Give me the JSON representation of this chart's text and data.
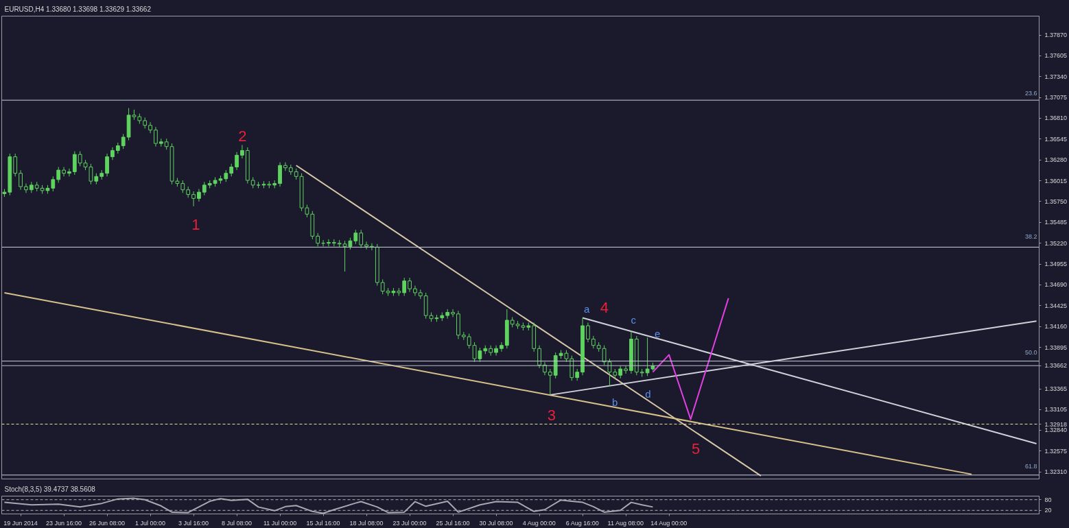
{
  "chart_data": [
    {
      "type": "candlestick",
      "title": "EURUSD,H4 1.33680 1.33698 1.33629 1.33662",
      "color": "#5fd35f",
      "categories": [
        null,
        null,
        null,
        "19 Jun 2014",
        null,
        null,
        null,
        null,
        null,
        null,
        null,
        "23 Jun 16:00",
        null,
        null,
        null,
        null,
        null,
        null,
        null,
        "26 Jun 08:00",
        null,
        null,
        null,
        null,
        null,
        null,
        null,
        "1 Jul 00:00",
        null,
        null,
        null,
        null,
        null,
        null,
        null,
        "3 Jul 16:00",
        null,
        null,
        null,
        null,
        null,
        null,
        null,
        "8 Jul 08:00",
        null,
        null,
        null,
        null,
        null,
        null,
        null,
        "11 Jul 00:00",
        null,
        null,
        null,
        null,
        null,
        null,
        null,
        "15 Jul 16:00",
        null,
        null,
        null,
        null,
        null,
        null,
        null,
        "18 Jul 08:00",
        null,
        null,
        null,
        null,
        null,
        null,
        null,
        "23 Jul 00:00",
        null,
        null,
        null,
        null,
        null,
        null,
        null,
        "25 Jul 16:00",
        null,
        null,
        null,
        null,
        null,
        null,
        null,
        "30 Jul 08:00",
        null,
        null,
        null,
        null,
        null,
        null,
        null,
        "4 Aug 00:00",
        null,
        null,
        null,
        null,
        null,
        null,
        null,
        "6 Aug 16:00",
        null,
        null,
        null,
        null,
        null,
        null,
        null,
        "11 Aug 08:00",
        null,
        null,
        null,
        null,
        null,
        null,
        null,
        "14 Aug 00:00",
        null,
        null,
        null,
        null,
        null,
        null,
        null,
        null,
        null,
        null,
        null,
        null,
        null,
        null,
        null,
        null,
        null,
        null,
        null,
        null,
        null,
        null,
        null,
        null,
        null,
        null,
        null,
        null,
        null,
        null,
        null,
        null,
        null,
        null,
        null,
        null,
        null,
        null,
        null,
        null,
        null,
        null,
        null,
        null,
        null,
        null,
        null,
        null,
        null,
        null,
        null,
        null,
        null,
        null,
        null,
        null,
        null,
        null,
        null,
        null,
        null,
        null,
        null,
        null,
        null,
        null,
        null,
        null
      ],
      "ohlc": [
        [
          1.3585,
          1.3591,
          1.3581,
          1.3587
        ],
        [
          1.3587,
          1.3636,
          1.3583,
          1.3632
        ],
        [
          1.3632,
          1.3636,
          1.3607,
          1.3611
        ],
        [
          1.3611,
          1.3615,
          1.359,
          1.3594
        ],
        [
          1.3594,
          1.3598,
          1.3586,
          1.359
        ],
        [
          1.359,
          1.36,
          1.3586,
          1.3596
        ],
        [
          1.3596,
          1.36,
          1.3588,
          1.3592
        ],
        [
          1.3592,
          1.3596,
          1.3585,
          1.3589
        ],
        [
          1.3589,
          1.3596,
          1.3585,
          1.3592
        ],
        [
          1.3592,
          1.3607,
          1.3588,
          1.3603
        ],
        [
          1.3603,
          1.3619,
          1.3599,
          1.3615
        ],
        [
          1.3615,
          1.3619,
          1.3607,
          1.3611
        ],
        [
          1.3611,
          1.3617,
          1.3607,
          1.3613
        ],
        [
          1.3613,
          1.3639,
          1.3609,
          1.3635
        ],
        [
          1.3635,
          1.3639,
          1.362,
          1.3624
        ],
        [
          1.3624,
          1.3628,
          1.3615,
          1.3619
        ],
        [
          1.3619,
          1.3623,
          1.3597,
          1.3601
        ],
        [
          1.3601,
          1.3611,
          1.3597,
          1.3607
        ],
        [
          1.3607,
          1.3615,
          1.3603,
          1.3611
        ],
        [
          1.3611,
          1.3636,
          1.3607,
          1.3632
        ],
        [
          1.3632,
          1.3644,
          1.3628,
          1.364
        ],
        [
          1.364,
          1.365,
          1.3636,
          1.3646
        ],
        [
          1.3646,
          1.3661,
          1.3642,
          1.3657
        ],
        [
          1.3657,
          1.3694,
          1.3653,
          1.3685
        ],
        [
          1.3685,
          1.3692,
          1.3679,
          1.3683
        ],
        [
          1.3683,
          1.3687,
          1.3674,
          1.3678
        ],
        [
          1.3678,
          1.3682,
          1.3668,
          1.3672
        ],
        [
          1.3672,
          1.3676,
          1.3662,
          1.3666
        ],
        [
          1.3666,
          1.367,
          1.3645,
          1.3649
        ],
        [
          1.3649,
          1.3655,
          1.3645,
          1.3651
        ],
        [
          1.3651,
          1.3655,
          1.3641,
          1.3645
        ],
        [
          1.3645,
          1.3649,
          1.3597,
          1.3601
        ],
        [
          1.3601,
          1.3605,
          1.3594,
          1.3598
        ],
        [
          1.3598,
          1.3602,
          1.3586,
          1.359
        ],
        [
          1.359,
          1.3594,
          1.358,
          1.3584
        ],
        [
          1.3584,
          1.3588,
          1.3569,
          1.3579
        ],
        [
          1.3579,
          1.3591,
          1.3575,
          1.3587
        ],
        [
          1.3587,
          1.36,
          1.3583,
          1.3596
        ],
        [
          1.3596,
          1.3602,
          1.3592,
          1.3598
        ],
        [
          1.3598,
          1.3606,
          1.3594,
          1.3602
        ],
        [
          1.3602,
          1.3608,
          1.3598,
          1.3604
        ],
        [
          1.3604,
          1.3615,
          1.36,
          1.3611
        ],
        [
          1.3611,
          1.3623,
          1.3607,
          1.3619
        ],
        [
          1.3619,
          1.3638,
          1.3615,
          1.3634
        ],
        [
          1.3634,
          1.3647,
          1.363,
          1.364
        ],
        [
          1.364,
          1.3644,
          1.3598,
          1.3602
        ],
        [
          1.3602,
          1.3606,
          1.3592,
          1.3596
        ],
        [
          1.3596,
          1.36,
          1.3592,
          1.3596
        ],
        [
          1.3596,
          1.3601,
          1.3592,
          1.3597
        ],
        [
          1.3597,
          1.3601,
          1.3592,
          1.3596
        ],
        [
          1.3596,
          1.3602,
          1.3592,
          1.3598
        ],
        [
          1.3598,
          1.3625,
          1.3594,
          1.3621
        ],
        [
          1.3621,
          1.3625,
          1.3614,
          1.3618
        ],
        [
          1.3618,
          1.3622,
          1.3609,
          1.3613
        ],
        [
          1.3613,
          1.3617,
          1.3603,
          1.3607
        ],
        [
          1.3607,
          1.3611,
          1.3563,
          1.3567
        ],
        [
          1.3567,
          1.3571,
          1.3555,
          1.3559
        ],
        [
          1.3559,
          1.3563,
          1.3527,
          1.3531
        ],
        [
          1.3531,
          1.3535,
          1.3518,
          1.3522
        ],
        [
          1.3522,
          1.3526,
          1.3518,
          1.3522
        ],
        [
          1.3522,
          1.3527,
          1.3518,
          1.3523
        ],
        [
          1.3523,
          1.3527,
          1.3518,
          1.3522
        ],
        [
          1.3522,
          1.3526,
          1.3517,
          1.3521
        ],
        [
          1.3521,
          1.3525,
          1.3486,
          1.3518
        ],
        [
          1.3518,
          1.3529,
          1.3514,
          1.3525
        ],
        [
          1.3525,
          1.3539,
          1.3521,
          1.3535
        ],
        [
          1.3535,
          1.3539,
          1.3516,
          1.352
        ],
        [
          1.352,
          1.3524,
          1.3514,
          1.3518
        ],
        [
          1.3518,
          1.3522,
          1.3513,
          1.3517
        ],
        [
          1.3517,
          1.3521,
          1.3468,
          1.3472
        ],
        [
          1.3472,
          1.3476,
          1.3457,
          1.3461
        ],
        [
          1.3461,
          1.3465,
          1.3455,
          1.3459
        ],
        [
          1.3459,
          1.3465,
          1.3455,
          1.3461
        ],
        [
          1.3461,
          1.3465,
          1.3455,
          1.3459
        ],
        [
          1.3459,
          1.3478,
          1.3455,
          1.3474
        ],
        [
          1.3474,
          1.3478,
          1.346,
          1.3464
        ],
        [
          1.3464,
          1.3468,
          1.3455,
          1.3459
        ],
        [
          1.3459,
          1.3463,
          1.3451,
          1.3455
        ],
        [
          1.3455,
          1.3459,
          1.3426,
          1.343
        ],
        [
          1.343,
          1.3434,
          1.3422,
          1.3426
        ],
        [
          1.3426,
          1.3431,
          1.3422,
          1.3427
        ],
        [
          1.3427,
          1.3434,
          1.3423,
          1.343
        ],
        [
          1.343,
          1.3438,
          1.3426,
          1.3434
        ],
        [
          1.3434,
          1.3438,
          1.3428,
          1.3432
        ],
        [
          1.3432,
          1.3436,
          1.34,
          1.3405
        ],
        [
          1.3405,
          1.3409,
          1.3399,
          1.3403
        ],
        [
          1.3403,
          1.3407,
          1.3388,
          1.3392
        ],
        [
          1.3392,
          1.3396,
          1.3371,
          1.3375
        ],
        [
          1.3375,
          1.3389,
          1.3371,
          1.3385
        ],
        [
          1.3385,
          1.3392,
          1.3381,
          1.3388
        ],
        [
          1.3388,
          1.3392,
          1.3379,
          1.3383
        ],
        [
          1.3383,
          1.3392,
          1.3379,
          1.3388
        ],
        [
          1.3388,
          1.3396,
          1.3384,
          1.3392
        ],
        [
          1.3392,
          1.3438,
          1.3388,
          1.3424
        ],
        [
          1.3424,
          1.3428,
          1.3415,
          1.3419
        ],
        [
          1.3419,
          1.3423,
          1.3413,
          1.3417
        ],
        [
          1.3417,
          1.3421,
          1.3411,
          1.3415
        ],
        [
          1.3415,
          1.3421,
          1.3411,
          1.3417
        ],
        [
          1.3417,
          1.3421,
          1.3384,
          1.3388
        ],
        [
          1.3388,
          1.3392,
          1.3363,
          1.3367
        ],
        [
          1.3367,
          1.3371,
          1.3354,
          1.3358
        ],
        [
          1.3358,
          1.3362,
          1.3329,
          1.3354
        ],
        [
          1.3354,
          1.3383,
          1.335,
          1.3379
        ],
        [
          1.3379,
          1.3386,
          1.3375,
          1.3382
        ],
        [
          1.3382,
          1.3386,
          1.3371,
          1.3375
        ],
        [
          1.3375,
          1.3379,
          1.3347,
          1.3351
        ],
        [
          1.3351,
          1.3362,
          1.3347,
          1.3358
        ],
        [
          1.3358,
          1.3427,
          1.3354,
          1.3417
        ],
        [
          1.3417,
          1.3421,
          1.3396,
          1.34
        ],
        [
          1.34,
          1.3404,
          1.3388,
          1.3392
        ],
        [
          1.3392,
          1.3396,
          1.3384,
          1.3388
        ],
        [
          1.3388,
          1.3392,
          1.3367,
          1.3371
        ],
        [
          1.3371,
          1.3375,
          1.334,
          1.3358
        ],
        [
          1.3358,
          1.3362,
          1.335,
          1.3354
        ],
        [
          1.3354,
          1.3366,
          1.335,
          1.3362
        ],
        [
          1.3362,
          1.3366,
          1.3356,
          1.336
        ],
        [
          1.336,
          1.341,
          1.3356,
          1.34
        ],
        [
          1.34,
          1.3404,
          1.3354,
          1.3358
        ],
        [
          1.3358,
          1.3362,
          1.3352,
          1.3357
        ],
        [
          1.3357,
          1.3402,
          1.3353,
          1.3362
        ],
        [
          1.3362,
          1.337,
          1.336,
          1.3366
        ],
        null,
        null,
        null,
        null,
        null,
        null,
        null,
        null,
        null,
        null,
        null,
        null,
        null,
        null,
        null,
        null,
        null,
        null,
        null,
        null,
        null,
        null,
        null,
        null,
        null,
        null,
        null,
        null,
        null,
        null,
        null,
        null,
        null,
        null,
        null,
        null,
        null,
        null,
        null,
        null,
        null,
        null,
        null,
        null,
        null,
        null,
        null,
        null,
        null,
        null,
        null,
        null,
        null,
        null,
        null,
        null,
        null,
        null,
        null,
        null,
        null,
        null,
        null,
        null,
        null,
        null,
        null,
        null,
        null,
        null,
        null
      ],
      "ylim": [
        1.3222,
        1.3811
      ],
      "tick_labels": "y",
      "grid": false,
      "yticks": [
        {
          "value": 1.3787,
          "label": "1.37870"
        },
        {
          "value": 1.37605,
          "label": "1.37605"
        },
        {
          "value": 1.3734,
          "label": "1.37340"
        },
        {
          "value": 1.37075,
          "label": "1.37075"
        },
        {
          "value": 1.3681,
          "label": "1.36810"
        },
        {
          "value": 1.36545,
          "label": "1.36545"
        },
        {
          "value": 1.3628,
          "label": "1.36280"
        },
        {
          "value": 1.36015,
          "label": "1.36015"
        },
        {
          "value": 1.3575,
          "label": "1.35750"
        },
        {
          "value": 1.35485,
          "label": "1.35485"
        },
        {
          "value": 1.3522,
          "label": "1.35220"
        },
        {
          "value": 1.34955,
          "label": "1.34955"
        },
        {
          "value": 1.3469,
          "label": "1.34690"
        },
        {
          "value": 1.34425,
          "label": "1.34425"
        },
        {
          "value": 1.3416,
          "label": "1.34160"
        },
        {
          "value": 1.33895,
          "label": "1.33895"
        },
        {
          "value": 1.33662,
          "label": "1.33662"
        },
        {
          "value": 1.33365,
          "label": "1.33365"
        },
        {
          "value": 1.33105,
          "label": "1.33105"
        },
        {
          "value": 1.32918,
          "label": "1.32918"
        },
        {
          "value": 1.3284,
          "label": "1.32840"
        },
        {
          "value": 1.32575,
          "label": "1.32575"
        },
        {
          "value": 1.3231,
          "label": "1.32310"
        }
      ],
      "ref_lines": [
        {
          "axis": "y",
          "value": 1.3704,
          "color": "#c8d0dc"
        },
        {
          "axis": "y",
          "value": 1.3517,
          "color": "#c8d0dc"
        },
        {
          "axis": "y",
          "value": 1.3372,
          "color": "#c8d0dc"
        },
        {
          "axis": "y",
          "value": 1.3227,
          "color": "#c8d0dc"
        },
        {
          "axis": "y",
          "value": 1.33662,
          "color": "#b8bcc4"
        },
        {
          "axis": "y",
          "value": 1.32918,
          "color": "#e8dca0",
          "line_style": "dashed"
        }
      ],
      "series": [
        {
          "type": "line",
          "color": "#d8c8a8",
          "values": [
            null,
            null,
            null,
            null,
            null,
            null,
            null,
            null,
            null,
            null,
            null,
            null,
            null,
            null,
            null,
            null,
            null,
            null,
            null,
            null,
            null,
            null,
            null,
            null,
            null,
            null,
            null,
            null,
            null,
            null,
            null,
            null,
            null,
            null,
            null,
            null,
            null,
            null,
            null,
            null,
            null,
            null,
            null,
            null,
            null,
            null,
            null,
            null,
            null,
            null,
            null,
            null,
            null,
            null,
            1.3621,
            null,
            null,
            null,
            null,
            null,
            null,
            null,
            null,
            null,
            null,
            null,
            null,
            null,
            null,
            null,
            null,
            null,
            null,
            null,
            null,
            null,
            null,
            null,
            null,
            null,
            null,
            null,
            null,
            null,
            null,
            null,
            null,
            null,
            null,
            null,
            null,
            null,
            null,
            null,
            null,
            null,
            null,
            null,
            null,
            null,
            null,
            null,
            null,
            null,
            null,
            null,
            null,
            null,
            null,
            null,
            null,
            null,
            null,
            null,
            null,
            null,
            null,
            null,
            null,
            null,
            null,
            null,
            null,
            null,
            null,
            null,
            null,
            null,
            null,
            null,
            null,
            null,
            null,
            null,
            null,
            null,
            null,
            null,
            null,
            null,
            1.3226,
            null,
            null,
            null,
            null,
            null,
            null,
            null,
            null,
            null,
            null,
            null,
            null,
            null,
            null,
            null,
            null,
            null,
            null,
            null,
            null,
            null,
            null,
            null,
            null,
            null,
            null,
            null,
            null,
            null,
            null,
            null,
            null,
            null,
            null,
            null,
            null,
            null,
            null,
            null,
            null,
            null,
            null,
            null,
            null,
            null,
            null,
            null,
            null,
            null,
            null,
            null
          ]
        },
        {
          "type": "line",
          "color": "#d8c08a",
          "values": [
            1.3459,
            null,
            null,
            null,
            null,
            null,
            null,
            null,
            null,
            null,
            null,
            null,
            null,
            null,
            null,
            null,
            null,
            null,
            null,
            null,
            null,
            null,
            null,
            null,
            null,
            null,
            null,
            null,
            null,
            null,
            null,
            null,
            null,
            null,
            null,
            null,
            null,
            null,
            null,
            null,
            null,
            null,
            null,
            null,
            null,
            null,
            null,
            null,
            null,
            null,
            null,
            null,
            null,
            null,
            null,
            null,
            null,
            null,
            null,
            null,
            null,
            null,
            null,
            null,
            null,
            null,
            null,
            null,
            null,
            null,
            null,
            null,
            null,
            null,
            null,
            null,
            null,
            null,
            null,
            null,
            null,
            null,
            null,
            null,
            null,
            null,
            null,
            null,
            null,
            null,
            null,
            null,
            null,
            null,
            null,
            null,
            null,
            null,
            null,
            null,
            null,
            null,
            null,
            null,
            null,
            null,
            null,
            null,
            null,
            null,
            null,
            null,
            null,
            null,
            null,
            null,
            null,
            null,
            null,
            null,
            null,
            null,
            null,
            null,
            null,
            null,
            null,
            null,
            null,
            null,
            null,
            null,
            null,
            null,
            null,
            null,
            null,
            null,
            null,
            null,
            null,
            null,
            null,
            null,
            null,
            null,
            null,
            null,
            null,
            null,
            null,
            null,
            null,
            null,
            null,
            null,
            null,
            null,
            null,
            null,
            null,
            null,
            null,
            null,
            null,
            null,
            null,
            null,
            null,
            null,
            null,
            null,
            null,
            null,
            null,
            null,
            null,
            null,
            null,
            1.3228,
            null,
            null,
            null,
            null,
            null,
            null,
            null,
            null,
            null,
            null,
            null,
            null
          ]
        },
        {
          "type": "line",
          "color": "#d0d0d8",
          "values": [
            null,
            null,
            null,
            null,
            null,
            null,
            null,
            null,
            null,
            null,
            null,
            null,
            null,
            null,
            null,
            null,
            null,
            null,
            null,
            null,
            null,
            null,
            null,
            null,
            null,
            null,
            null,
            null,
            null,
            null,
            null,
            null,
            null,
            null,
            null,
            null,
            null,
            null,
            null,
            null,
            null,
            null,
            null,
            null,
            null,
            null,
            null,
            null,
            null,
            null,
            null,
            null,
            null,
            null,
            null,
            null,
            null,
            null,
            null,
            null,
            null,
            null,
            null,
            null,
            null,
            null,
            null,
            null,
            null,
            null,
            null,
            null,
            null,
            null,
            null,
            null,
            null,
            null,
            null,
            null,
            null,
            null,
            null,
            null,
            null,
            null,
            null,
            null,
            null,
            null,
            null,
            null,
            null,
            null,
            null,
            null,
            null,
            null,
            null,
            null,
            null,
            null,
            null,
            null,
            null,
            null,
            null,
            1.3427,
            null,
            null,
            null,
            null,
            null,
            null,
            null,
            null,
            null,
            null,
            null,
            null,
            null,
            null,
            null,
            null,
            null,
            null,
            null,
            null,
            null,
            null,
            null,
            null,
            null,
            null,
            null,
            null,
            null,
            null,
            null,
            null,
            null,
            null,
            null,
            null,
            null,
            null,
            null,
            null,
            null,
            null,
            null,
            null,
            null,
            null,
            null,
            null,
            null,
            null,
            null,
            null,
            null,
            null,
            null,
            null,
            null,
            null,
            null,
            null,
            null,
            null,
            null,
            null,
            null,
            null,
            null,
            null,
            null,
            null,
            null,
            null,
            null,
            null,
            null,
            null,
            null,
            null,
            null,
            null,
            null,
            null,
            null,
            1.3267
          ]
        },
        {
          "type": "line",
          "color": "#d0d0d8",
          "values": [
            null,
            null,
            null,
            null,
            null,
            null,
            null,
            null,
            null,
            null,
            null,
            null,
            null,
            null,
            null,
            null,
            null,
            null,
            null,
            null,
            null,
            null,
            null,
            null,
            null,
            null,
            null,
            null,
            null,
            null,
            null,
            null,
            null,
            null,
            null,
            null,
            null,
            null,
            null,
            null,
            null,
            null,
            null,
            null,
            null,
            null,
            null,
            null,
            null,
            null,
            null,
            null,
            null,
            null,
            null,
            null,
            null,
            null,
            null,
            null,
            null,
            null,
            null,
            null,
            null,
            null,
            null,
            null,
            null,
            null,
            null,
            null,
            null,
            null,
            null,
            null,
            null,
            null,
            null,
            null,
            null,
            null,
            null,
            null,
            null,
            null,
            null,
            null,
            null,
            null,
            null,
            null,
            null,
            null,
            null,
            null,
            null,
            null,
            null,
            null,
            null,
            1.3329,
            null,
            null,
            null,
            null,
            null,
            null,
            null,
            null,
            null,
            null,
            null,
            null,
            null,
            null,
            null,
            null,
            null,
            null,
            null,
            null,
            null,
            null,
            null,
            null,
            null,
            null,
            null,
            null,
            null,
            null,
            null,
            null,
            null,
            null,
            null,
            null,
            null,
            null,
            null,
            null,
            null,
            null,
            null,
            null,
            null,
            null,
            null,
            null,
            null,
            null,
            null,
            null,
            null,
            null,
            null,
            null,
            null,
            null,
            null,
            null,
            null,
            null,
            null,
            null,
            null,
            null,
            null,
            null,
            null,
            null,
            null,
            null,
            null,
            null,
            null,
            null,
            null,
            null,
            null,
            null,
            null,
            null,
            null,
            null,
            null,
            null,
            null,
            null,
            null,
            1.3423
          ]
        },
        {
          "type": "line",
          "color": "#e040e0",
          "values": [
            null,
            null,
            null,
            null,
            null,
            null,
            null,
            null,
            null,
            null,
            null,
            null,
            null,
            null,
            null,
            null,
            null,
            null,
            null,
            null,
            null,
            null,
            null,
            null,
            null,
            null,
            null,
            null,
            null,
            null,
            null,
            null,
            null,
            null,
            null,
            null,
            null,
            null,
            null,
            null,
            null,
            null,
            null,
            null,
            null,
            null,
            null,
            null,
            null,
            null,
            null,
            null,
            null,
            null,
            null,
            null,
            null,
            null,
            null,
            null,
            null,
            null,
            null,
            null,
            null,
            null,
            null,
            null,
            null,
            null,
            null,
            null,
            null,
            null,
            null,
            null,
            null,
            null,
            null,
            null,
            null,
            null,
            null,
            null,
            null,
            null,
            null,
            null,
            null,
            null,
            null,
            null,
            null,
            null,
            null,
            null,
            null,
            null,
            null,
            null,
            null,
            null,
            null,
            null,
            null,
            null,
            null,
            null,
            null,
            null,
            null,
            null,
            null,
            null,
            null,
            null,
            null,
            null,
            null,
            null,
            1.3358,
            null,
            null,
            1.338,
            null,
            null,
            null,
            1.3298,
            null,
            null,
            null,
            null,
            null,
            null,
            1.3452,
            null,
            null,
            null,
            null,
            null,
            null,
            null,
            null,
            null,
            null,
            null,
            null,
            null,
            null,
            null,
            null,
            null,
            null,
            null,
            null,
            null,
            null,
            null,
            null,
            null,
            null,
            null,
            null,
            null,
            null,
            null,
            null,
            null,
            null,
            null,
            null,
            null,
            null,
            null,
            null,
            null,
            null,
            null,
            null,
            null,
            null,
            null,
            null,
            null,
            null,
            null,
            null,
            null,
            null,
            null,
            null,
            null
          ]
        }
      ],
      "annotations": [
        "1",
        "2",
        "3",
        "4",
        "5",
        "a",
        "b",
        "c",
        "d",
        "e",
        "23.6",
        "38.2",
        "50.0",
        "61.8"
      ]
    },
    {
      "type": "line",
      "title": "Stoch(8,3,5) 39.4737 38.5608",
      "ylim": [
        0,
        100
      ],
      "tick_labels": "xy",
      "grid": false,
      "yticks": [
        20,
        80
      ],
      "ref_lines": [
        {
          "axis": "y",
          "value": 80,
          "color": "#b0b0b8",
          "line_style": "dashed"
        },
        {
          "axis": "y",
          "value": 20,
          "color": "#b0b0b8",
          "line_style": "dashed"
        }
      ],
      "series": [
        {
          "type": "line",
          "color": "#a8a8b0",
          "values": [
            65,
            null,
            null,
            null,
            null,
            51,
            null,
            null,
            null,
            null,
            55,
            null,
            null,
            null,
            39,
            null,
            null,
            null,
            59,
            null,
            null,
            84,
            null,
            null,
            88,
            null,
            80,
            null,
            null,
            45,
            null,
            10,
            null,
            null,
            8,
            null,
            null,
            null,
            71,
            null,
            86,
            null,
            76,
            null,
            null,
            82,
            null,
            39,
            null,
            null,
            18,
            null,
            41,
            null,
            47,
            null,
            null,
            14,
            null,
            4,
            null,
            24,
            null,
            null,
            null,
            61,
            69,
            null,
            null,
            39,
            null,
            8,
            null,
            null,
            10,
            null,
            69,
            null,
            43,
            null,
            null,
            null,
            71,
            null,
            10,
            null,
            null,
            null,
            51,
            null,
            null,
            69,
            null,
            null,
            null,
            65,
            null,
            null,
            14,
            null,
            24,
            null,
            null,
            78,
            null,
            71,
            null,
            65,
            null,
            41,
            null,
            10,
            null,
            null,
            20,
            null,
            65,
            null,
            51,
            null,
            39,
            null,
            null,
            null,
            null,
            null,
            null,
            null,
            null,
            null,
            null,
            null,
            null,
            null,
            null,
            null,
            null,
            null,
            null,
            null,
            null,
            null,
            null,
            null,
            null,
            null,
            null,
            null,
            null,
            null,
            null,
            null,
            null,
            null,
            null,
            null,
            null,
            null,
            null,
            null,
            null,
            null,
            null,
            null,
            null,
            null,
            null,
            null,
            null,
            null,
            null,
            null,
            null,
            null,
            null,
            null,
            null,
            null,
            null,
            null,
            null,
            null,
            null,
            null,
            null,
            null,
            null,
            null,
            null,
            null,
            null,
            null
          ]
        }
      ]
    }
  ]
}
